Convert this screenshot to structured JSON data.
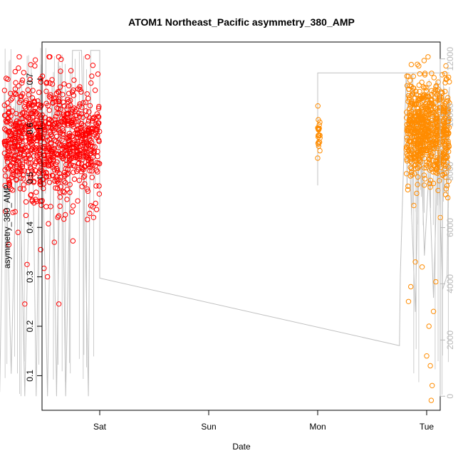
{
  "chart_data": {
    "type": "scatter",
    "title": "ATOM1 Northeast_Pacific asymmetry_380_AMP",
    "xlabel": "Date",
    "ylabel": "asymmetry_380_AMP",
    "x_ticks": [
      "Sat",
      "Sun",
      "Mon",
      "Tue"
    ],
    "y_ticks": [
      "0.1",
      "0.2",
      "0.3",
      "0.4",
      "0.5",
      "0.6",
      "0.7"
    ],
    "y2_ticks": [
      "0",
      "2000",
      "4000",
      "6000",
      "8000",
      "10000",
      "12000"
    ],
    "xlim": [
      "Fri 11:00",
      "Tue 04:00"
    ],
    "ylim": [
      0.03,
      0.775
    ],
    "y2lim": [
      -500,
      12600
    ],
    "grid": false,
    "colors": {
      "series1": "#ff0000",
      "series2": "#ff8c00",
      "line": "#c0c0c0",
      "frame": "#000000",
      "right_axis": "#b8b8b8"
    },
    "series": [
      {
        "color": "#ff0000",
        "clusters": [
          {
            "x_start_hours": 3.0,
            "x_end_hours": 24.0,
            "y_center": 0.575,
            "y_spread": 0.075,
            "density": 900
          }
        ],
        "outliers": [
          {
            "x_hours": 7.5,
            "y": 0.245
          },
          {
            "x_hours": 15.0,
            "y": 0.245
          },
          {
            "x_hours": 12.5,
            "y": 0.3
          },
          {
            "x_hours": 8.0,
            "y": 0.325
          },
          {
            "x_hours": 11.0,
            "y": 0.355
          },
          {
            "x_hours": 14.0,
            "y": 0.37
          },
          {
            "x_hours": 13.0,
            "y": 0.745
          },
          {
            "x_hours": 15.5,
            "y": 0.74
          },
          {
            "x_hours": 4.0,
            "y": 0.365
          },
          {
            "x_hours": 6.0,
            "y": 0.39
          }
        ]
      },
      {
        "color": "#ff8c00",
        "clusters": [
          {
            "x_start_hours": 72.0,
            "x_end_hours": 72.5,
            "y_center": 0.595,
            "y_spread": 0.025,
            "density": 25
          },
          {
            "x_start_hours": 91.5,
            "x_end_hours": 101.0,
            "y_center": 0.595,
            "y_spread": 0.065,
            "density": 700
          }
        ],
        "outliers": [
          {
            "x_hours": 92.0,
            "y": 0.25
          },
          {
            "x_hours": 92.5,
            "y": 0.28
          },
          {
            "x_hours": 95.0,
            "y": 0.32
          },
          {
            "x_hours": 96.5,
            "y": 0.2
          },
          {
            "x_hours": 96.8,
            "y": 0.12
          },
          {
            "x_hours": 97.0,
            "y": 0.05
          },
          {
            "x_hours": 97.2,
            "y": 0.08
          },
          {
            "x_hours": 97.5,
            "y": 0.23
          },
          {
            "x_hours": 96.0,
            "y": 0.14
          },
          {
            "x_hours": 98.0,
            "y": 0.29
          },
          {
            "x_hours": 93.5,
            "y": 0.33
          },
          {
            "x_hours": 99.0,
            "y": 0.42
          }
        ]
      }
    ],
    "line_series": [
      {
        "x_hours": 2.0,
        "y2": 150
      },
      {
        "x_hours": 3.0,
        "y2": 10800
      },
      {
        "x_hours": 4.5,
        "y2": 800
      },
      {
        "x_hours": 6.0,
        "y2": 11000
      },
      {
        "x_hours": 7.5,
        "y2": 0
      },
      {
        "x_hours": 9.0,
        "y2": 11500
      },
      {
        "x_hours": 10.0,
        "y2": 0
      },
      {
        "x_hours": 11.0,
        "y2": 11800
      },
      {
        "x_hours": 12.5,
        "y2": 0
      },
      {
        "x_hours": 13.5,
        "y2": 11000
      },
      {
        "x_hours": 14.5,
        "y2": 0
      },
      {
        "x_hours": 15.5,
        "y2": 11600
      },
      {
        "x_hours": 16.5,
        "y2": 0
      },
      {
        "x_hours": 18.0,
        "y2": 12300
      },
      {
        "x_hours": 20.0,
        "y2": 12300
      },
      {
        "x_hours": 21.5,
        "y2": 0
      },
      {
        "x_hours": 22.0,
        "y2": 12300
      },
      {
        "x_hours": 24.0,
        "y2": 12300
      },
      {
        "x_hours": 24.0,
        "y2": 4200
      },
      {
        "x_hours": 90.0,
        "y2": 1800
      },
      {
        "x_hours": 90.2,
        "y2": 4300
      },
      {
        "x_hours": 91.5,
        "y2": 11500
      },
      {
        "x_hours": 93.5,
        "y2": 3000
      },
      {
        "x_hours": 94.5,
        "y2": 10500
      },
      {
        "x_hours": 95.5,
        "y2": 5000
      },
      {
        "x_hours": 96.5,
        "y2": 8000
      },
      {
        "x_hours": 97.5,
        "y2": 3500
      },
      {
        "x_hours": 98.5,
        "y2": 9000
      },
      {
        "x_hours": 99.5,
        "y2": 3800
      },
      {
        "x_hours": 100.5,
        "y2": 4300
      },
      {
        "x_hours": 101.0,
        "y2": 11000
      }
    ],
    "line_series_2": [
      {
        "x_hours": 72.0,
        "y2": 7500
      },
      {
        "x_hours": 72.0,
        "y2": 11500
      },
      {
        "x_hours": 101.0,
        "y2": 11500
      }
    ]
  }
}
